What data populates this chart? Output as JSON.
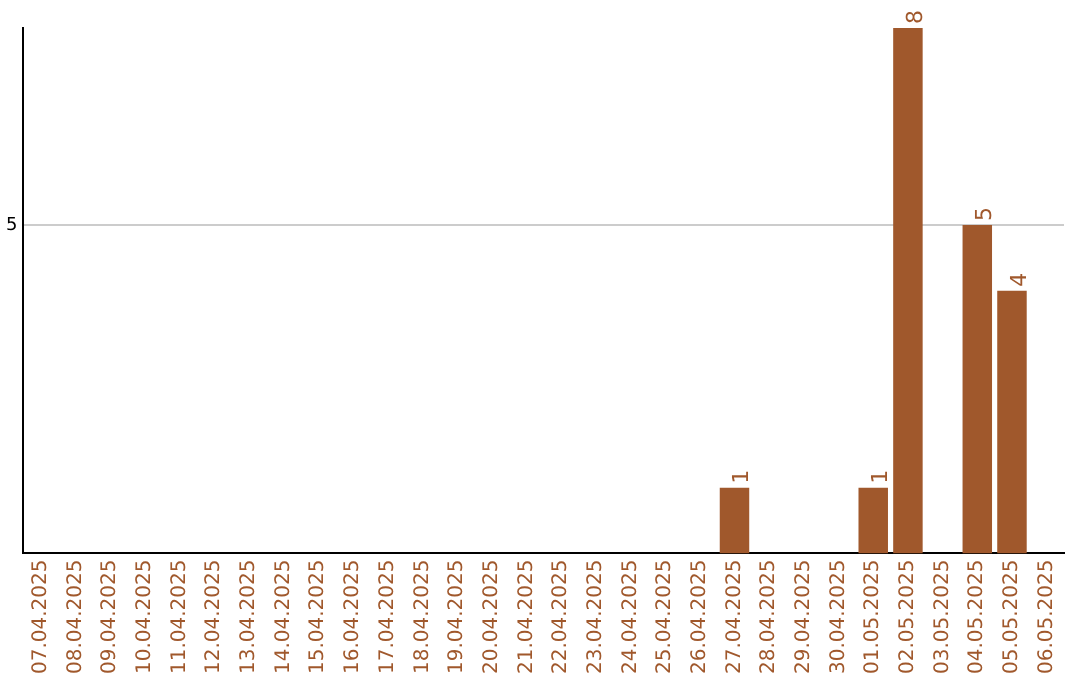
{
  "chart_data": {
    "type": "bar",
    "categories": [
      "07.04.2025",
      "08.04.2025",
      "09.04.2025",
      "10.04.2025",
      "11.04.2025",
      "12.04.2025",
      "13.04.2025",
      "14.04.2025",
      "15.04.2025",
      "16.04.2025",
      "17.04.2025",
      "18.04.2025",
      "19.04.2025",
      "20.04.2025",
      "21.04.2025",
      "22.04.2025",
      "23.04.2025",
      "24.04.2025",
      "25.04.2025",
      "26.04.2025",
      "27.04.2025",
      "28.04.2025",
      "29.04.2025",
      "30.04.2025",
      "01.05.2025",
      "02.05.2025",
      "03.05.2025",
      "04.05.2025",
      "05.05.2025",
      "06.05.2025"
    ],
    "values": [
      null,
      null,
      null,
      null,
      null,
      null,
      null,
      null,
      null,
      null,
      null,
      null,
      null,
      null,
      null,
      null,
      null,
      null,
      null,
      null,
      1,
      null,
      null,
      null,
      1,
      8,
      null,
      5,
      4,
      null
    ],
    "data_labels": true,
    "color": "#a0582c",
    "ylim": [
      0,
      8
    ],
    "yticks": [
      5
    ],
    "grid": "y",
    "legend": false
  }
}
